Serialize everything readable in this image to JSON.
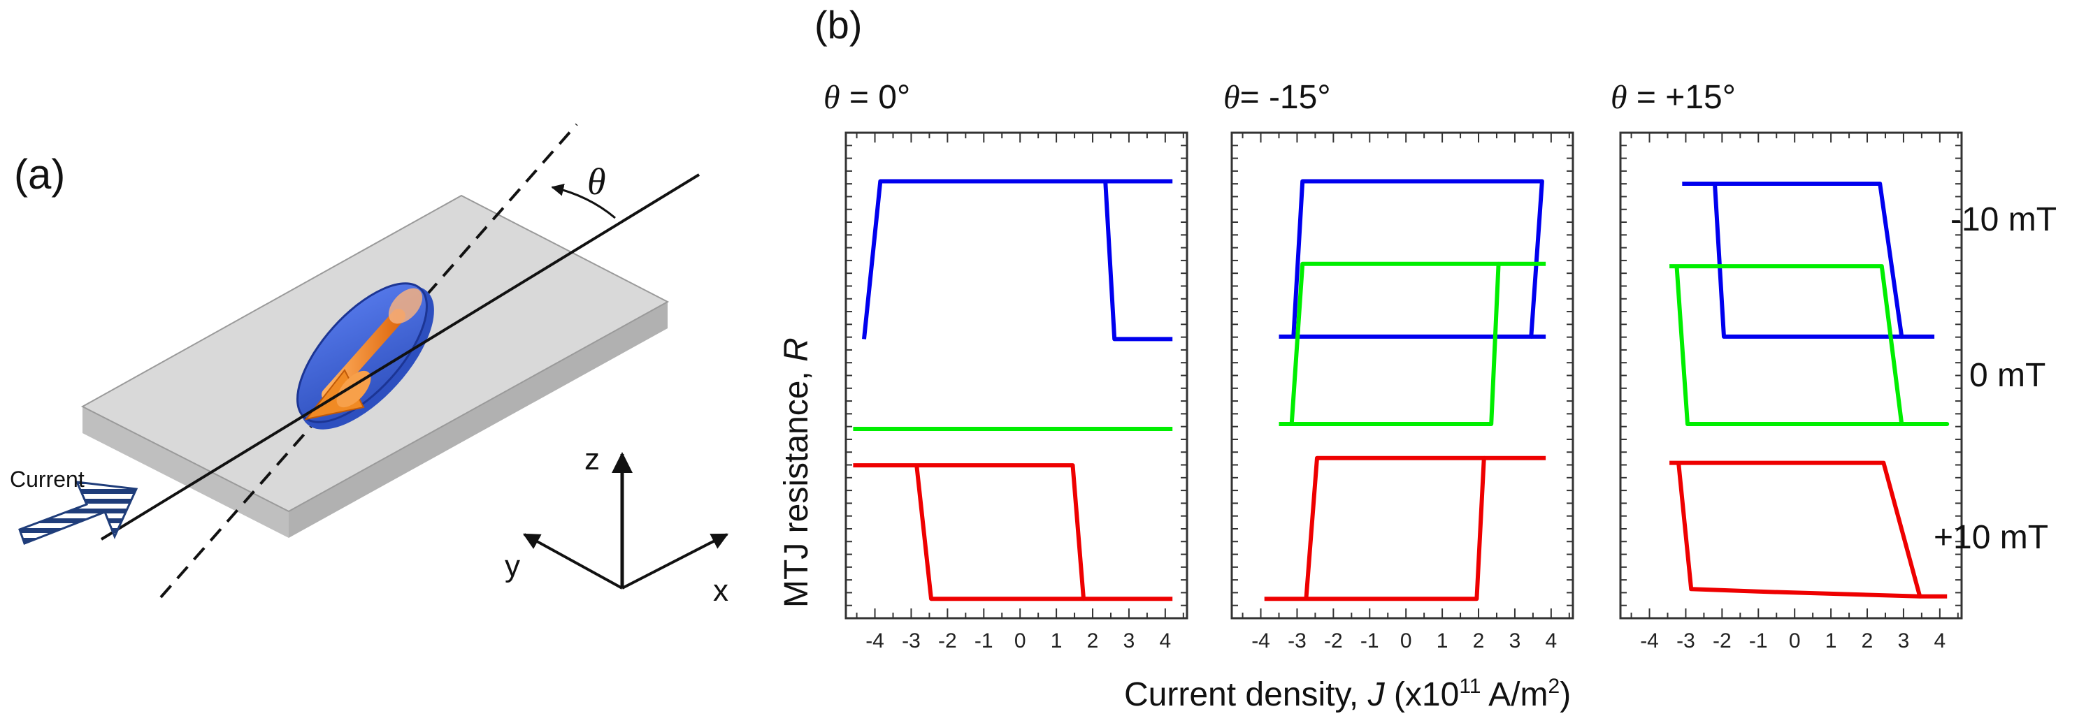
{
  "panel_a": {
    "label": "(a)",
    "theta_symbol": "θ",
    "current_label": "Current",
    "axes": {
      "z": "z",
      "y": "y",
      "x": "x"
    },
    "colors": {
      "slab": "#c4c4c4",
      "ellipse": "#3a5fd0",
      "arrow": "#f08a24",
      "stripes": "#1f3d7a"
    }
  },
  "panel_b": {
    "label": "(b)",
    "ylabel_main": "MTJ resistance, ",
    "ylabel_var": "R",
    "xlabel_main": "Current density, ",
    "xlabel_var": "J",
    "xlabel_units_pre": "  (x10",
    "xlabel_exp": "11",
    "xlabel_units_mid": " A/m",
    "xlabel_sq": "2",
    "xlabel_units_post": ")",
    "legend": [
      {
        "text": "-10 mT",
        "color": "#0000ee"
      },
      {
        "text": "0 mT",
        "color": "#00ee00"
      },
      {
        "text": "+10 mT",
        "color": "#ee0000"
      }
    ]
  },
  "chart_data": [
    {
      "type": "line",
      "title_symbol": "θ",
      "title_value": " = 0°",
      "xlabel": "Current density, J (x10^11 A/m^2)",
      "ylabel": "MTJ resistance, R",
      "xlim": [
        -4.8,
        4.6
      ],
      "ylim": [
        0,
        10
      ],
      "xticks": [
        -4,
        -3,
        -2,
        -1,
        0,
        1,
        2,
        3,
        4
      ],
      "series": [
        {
          "name": "-10 mT",
          "color": "#0000ee",
          "x": [
            -4.3,
            -3.85,
            2.35,
            2.6,
            4.2
          ],
          "y": [
            5.75,
            9.0,
            9.0,
            5.75,
            5.75
          ],
          "x2": [
            -3.85,
            4.2
          ],
          "y2": [
            9.0,
            9.0
          ]
        },
        {
          "name": "0 mT",
          "color": "#00ee00",
          "x": [
            -4.6,
            4.2
          ],
          "y": [
            3.9,
            3.9
          ]
        },
        {
          "name": "+10 mT",
          "color": "#ee0000",
          "x": [
            -4.6,
            -2.85,
            -2.45,
            1.75,
            1.45,
            -4.6
          ],
          "y": [
            3.15,
            3.15,
            0.4,
            0.4,
            3.15,
            3.15
          ],
          "x2": [
            1.75,
            4.2
          ],
          "y2": [
            0.4,
            0.4
          ]
        }
      ]
    },
    {
      "type": "line",
      "title_symbol": "θ",
      "title_value": "= -15°",
      "xlabel": "Current density, J (x10^11 A/m^2)",
      "ylabel": "MTJ resistance, R",
      "xlim": [
        -4.8,
        4.6
      ],
      "ylim": [
        0,
        10
      ],
      "xticks": [
        -4,
        -3,
        -2,
        -1,
        0,
        1,
        2,
        3,
        4
      ],
      "series": [
        {
          "name": "-10 mT",
          "color": "#0000ee",
          "x": [
            -3.5,
            -3.1,
            -2.85,
            3.75,
            3.45,
            -3.1
          ],
          "y": [
            5.8,
            5.8,
            9.0,
            9.0,
            5.8,
            5.8
          ],
          "x2": [
            3.45,
            3.85
          ],
          "y2": [
            5.8,
            5.8
          ]
        },
        {
          "name": "0 mT",
          "color": "#00ee00",
          "x": [
            -3.5,
            -3.15,
            -2.85,
            2.55,
            2.35,
            -3.15
          ],
          "y": [
            4.0,
            4.0,
            7.3,
            7.3,
            4.0,
            4.0
          ],
          "x2": [
            2.55,
            3.85
          ],
          "y2": [
            7.3,
            7.3
          ]
        },
        {
          "name": "+10 mT",
          "color": "#ee0000",
          "x": [
            -3.9,
            -2.75,
            -2.45,
            2.15,
            1.95,
            -2.75
          ],
          "y": [
            0.4,
            0.4,
            3.3,
            3.3,
            0.4,
            0.4
          ],
          "x2": [
            2.15,
            3.85
          ],
          "y2": [
            3.3,
            3.3
          ]
        }
      ]
    },
    {
      "type": "line",
      "title_symbol": "θ",
      "title_value": " = +15°",
      "xlabel": "Current density, J (x10^11 A/m^2)",
      "ylabel": "MTJ resistance, R",
      "xlim": [
        -4.8,
        4.6
      ],
      "ylim": [
        0,
        10
      ],
      "xticks": [
        -4,
        -3,
        -2,
        -1,
        0,
        1,
        2,
        3,
        4
      ],
      "series": [
        {
          "name": "-10 mT",
          "color": "#0000ee",
          "x": [
            -3.1,
            -2.2,
            -1.95,
            2.95,
            2.35,
            -2.2
          ],
          "y": [
            8.95,
            8.95,
            5.8,
            5.8,
            8.95,
            8.95
          ],
          "x2": [
            2.95,
            3.85
          ],
          "y2": [
            5.8,
            5.8
          ]
        },
        {
          "name": "0 mT",
          "color": "#00ee00",
          "x": [
            -3.45,
            -3.25,
            -2.95,
            4.2,
            2.95,
            2.4,
            -3.25
          ],
          "y": [
            7.25,
            7.25,
            4.0,
            4.0,
            4.0,
            7.25,
            7.25
          ]
        },
        {
          "name": "+10 mT",
          "color": "#ee0000",
          "x": [
            -3.45,
            -3.2,
            -2.85,
            -1.0,
            3.45,
            2.45,
            -3.2
          ],
          "y": [
            3.2,
            3.2,
            0.6,
            0.55,
            0.45,
            3.2,
            3.2
          ],
          "x2": [
            3.45,
            4.2
          ],
          "y2": [
            0.45,
            0.45
          ]
        }
      ]
    }
  ]
}
